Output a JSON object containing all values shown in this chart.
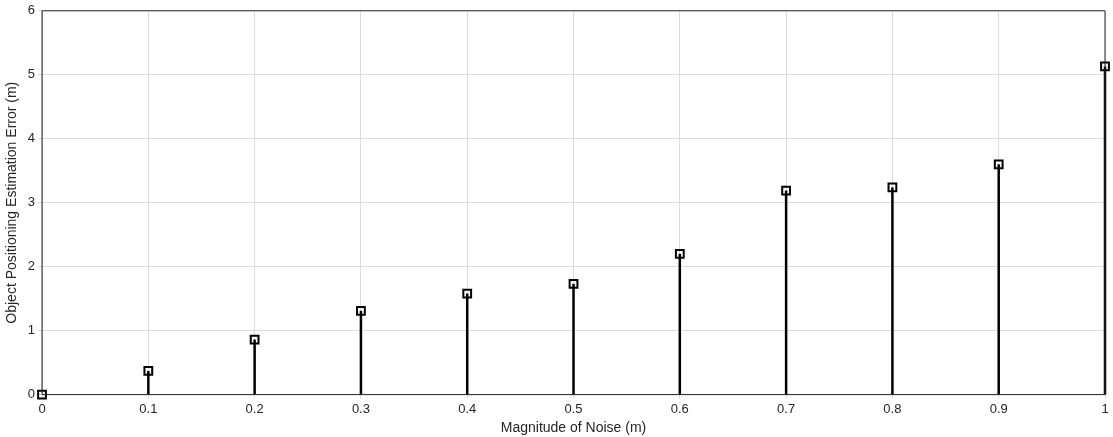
{
  "chart_data": {
    "type": "lollipop",
    "xlabel": "Magnitude of Noise (m)",
    "ylabel": "Object Positioning Estimation Error (m)",
    "x": [
      0,
      0.1,
      0.2,
      0.3,
      0.4,
      0.5,
      0.6,
      0.7,
      0.8,
      0.9,
      1
    ],
    "values": [
      0,
      0.37,
      0.86,
      1.31,
      1.58,
      1.73,
      2.2,
      3.19,
      3.24,
      3.6,
      5.13
    ],
    "color": "#000000",
    "marker": "square",
    "xlim": [
      0,
      1
    ],
    "xticks": [
      0,
      0.1,
      0.2,
      0.3,
      0.4,
      0.5,
      0.6,
      0.7,
      0.8,
      0.9,
      1
    ],
    "ylim": [
      0,
      6
    ],
    "yticks": [
      0,
      1,
      2,
      3,
      4,
      5,
      6
    ],
    "grid": true,
    "legend": false
  }
}
